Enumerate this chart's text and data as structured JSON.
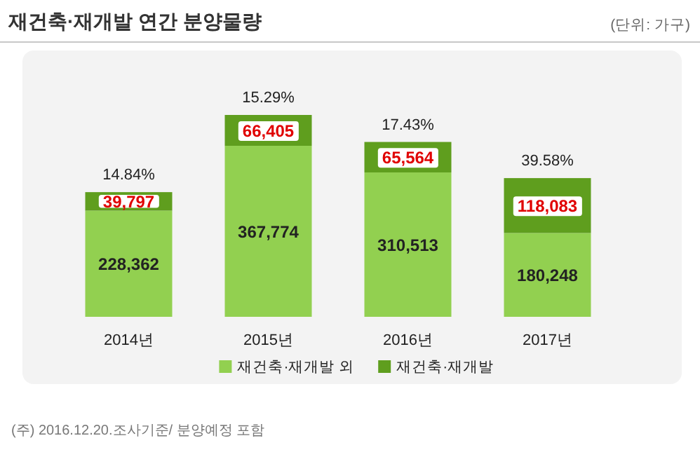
{
  "chart_data": {
    "type": "bar",
    "title": "재건축·재개발 연간 분양물량",
    "subtitle": "(단위: 가구)",
    "categories": [
      "2014년",
      "2015년",
      "2016년",
      "2017년"
    ],
    "stacked": true,
    "legend": "bottom",
    "series": [
      {
        "name": "재건축·재개발 외",
        "color": "#92d050",
        "values": [
          228362,
          367774,
          310513,
          180248
        ],
        "value_labels": [
          "228,362",
          "367,774",
          "310,513",
          "180,248"
        ]
      },
      {
        "name": "재건축·재개발",
        "color": "#5f9e1e",
        "values": [
          39797,
          66405,
          65564,
          118083
        ],
        "value_labels": [
          "39,797",
          "66,405",
          "65,564",
          "118,083"
        ]
      }
    ],
    "annotations": [
      {
        "text": "14.84%",
        "x": "2014년",
        "y": 268159
      },
      {
        "text": "15.29%",
        "x": "2015년",
        "y": 434179
      },
      {
        "text": "17.43%",
        "x": "2016년",
        "y": 376077
      },
      {
        "text": "39.58%",
        "x": "2017년",
        "y": 298331
      },
      "(주) 2016.12.20.조사기준/ 분양예정 포함"
    ]
  }
}
